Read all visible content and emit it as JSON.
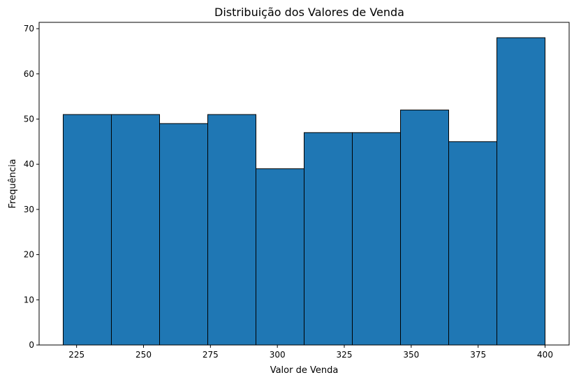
{
  "chart_data": {
    "type": "bar",
    "title": "Distribuição dos Valores de Venda",
    "xlabel": "Valor de Venda",
    "ylabel": "Frequência",
    "bins": [
      {
        "start": 220,
        "end": 238,
        "count": 51
      },
      {
        "start": 238,
        "end": 256,
        "count": 51
      },
      {
        "start": 256,
        "end": 274,
        "count": 49
      },
      {
        "start": 274,
        "end": 292,
        "count": 51
      },
      {
        "start": 292,
        "end": 310,
        "count": 39
      },
      {
        "start": 310,
        "end": 328,
        "count": 47
      },
      {
        "start": 328,
        "end": 346,
        "count": 47
      },
      {
        "start": 346,
        "end": 364,
        "count": 52
      },
      {
        "start": 364,
        "end": 382,
        "count": 45
      },
      {
        "start": 382,
        "end": 400,
        "count": 68
      }
    ],
    "xlim": [
      211,
      409
    ],
    "ylim": [
      0,
      71.4
    ],
    "x_ticks": [
      "225",
      "250",
      "275",
      "300",
      "325",
      "350",
      "375",
      "400"
    ],
    "y_ticks": [
      "0",
      "10",
      "20",
      "30",
      "40",
      "50",
      "60",
      "70"
    ],
    "grid": false,
    "bar_color": "#1f77b4",
    "edge_color": "#000000"
  }
}
